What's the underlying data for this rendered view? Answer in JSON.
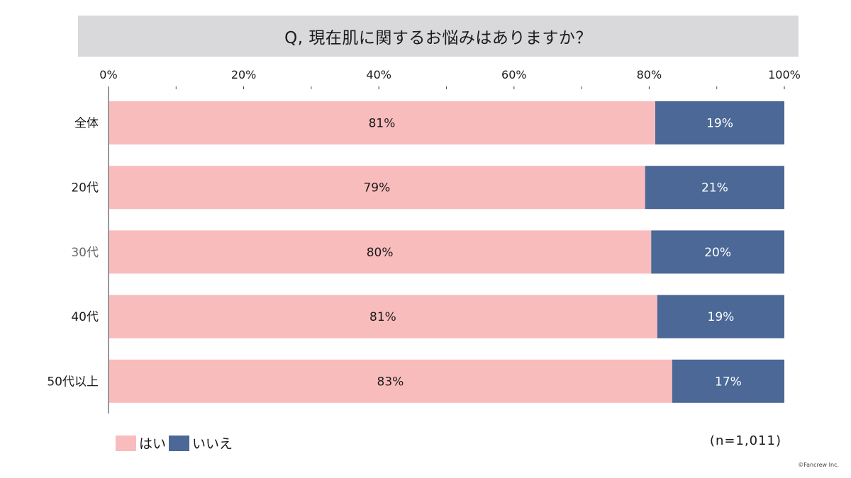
{
  "chart_data": {
    "type": "bar",
    "orientation": "horizontal",
    "stacked": true,
    "normalized": true,
    "title": "Q, 現在肌に関するお悩みはありますか？",
    "categories": [
      "全体",
      "20代",
      "30代",
      "40代",
      "50代以上"
    ],
    "series": [
      {
        "name": "はい",
        "values": [
          81,
          79,
          80,
          81,
          83
        ],
        "labels": [
          "81%",
          "79%",
          "80%",
          "81%",
          "83%"
        ],
        "color": "#f9bcbc"
      },
      {
        "name": "いいえ",
        "values": [
          19,
          21,
          20,
          19,
          17
        ],
        "labels": [
          "19%",
          "21%",
          "20%",
          "19%",
          "17%"
        ],
        "color": "#4b6896"
      }
    ],
    "exact_split": [
      80.9,
      79.4,
      80.3,
      81.2,
      83.4
    ],
    "xlim": [
      0,
      100
    ],
    "ticks": [
      "0%",
      "20%",
      "40%",
      "60%",
      "80%",
      "100%"
    ],
    "minor_ticks": [
      10,
      30,
      50,
      70,
      90
    ],
    "grid": false,
    "legend_position": "bottom-left",
    "sample_note": "(n=1,011)",
    "copyright": "©Fancrew Inc.",
    "category_label_colors": [
      "#1a1a1a",
      "#1a1a1a",
      "#666666",
      "#1a1a1a",
      "#1a1a1a"
    ]
  }
}
